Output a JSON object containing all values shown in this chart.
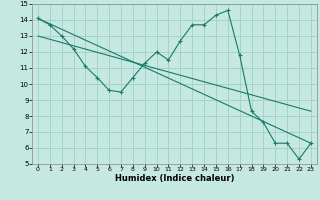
{
  "background_color": "#c5e8e0",
  "grid_color": "#a0cfc4",
  "line_color": "#1a7a6a",
  "marker": "+",
  "xlabel": "Humidex (Indice chaleur)",
  "xlim": [
    -0.5,
    23.5
  ],
  "ylim": [
    5,
    15
  ],
  "xticks": [
    0,
    1,
    2,
    3,
    4,
    5,
    6,
    7,
    8,
    9,
    10,
    11,
    12,
    13,
    14,
    15,
    16,
    17,
    18,
    19,
    20,
    21,
    22,
    23
  ],
  "yticks": [
    5,
    6,
    7,
    8,
    9,
    10,
    11,
    12,
    13,
    14,
    15
  ],
  "line1_x": [
    0,
    1,
    2,
    3,
    4,
    5,
    6,
    7,
    8,
    9,
    10,
    11,
    12,
    13,
    14,
    15,
    16,
    17,
    18,
    19,
    20,
    21,
    22,
    23
  ],
  "line1_y": [
    14.1,
    13.7,
    13.0,
    12.2,
    11.1,
    10.4,
    9.6,
    9.5,
    10.4,
    11.3,
    12.0,
    11.5,
    12.7,
    13.7,
    13.7,
    14.3,
    14.6,
    11.8,
    8.3,
    7.6,
    6.3,
    6.3,
    5.3,
    6.3
  ],
  "line2_x": [
    0,
    23
  ],
  "line2_y": [
    14.1,
    6.3
  ],
  "line3_x": [
    0,
    23
  ],
  "line3_y": [
    13.0,
    8.3
  ]
}
